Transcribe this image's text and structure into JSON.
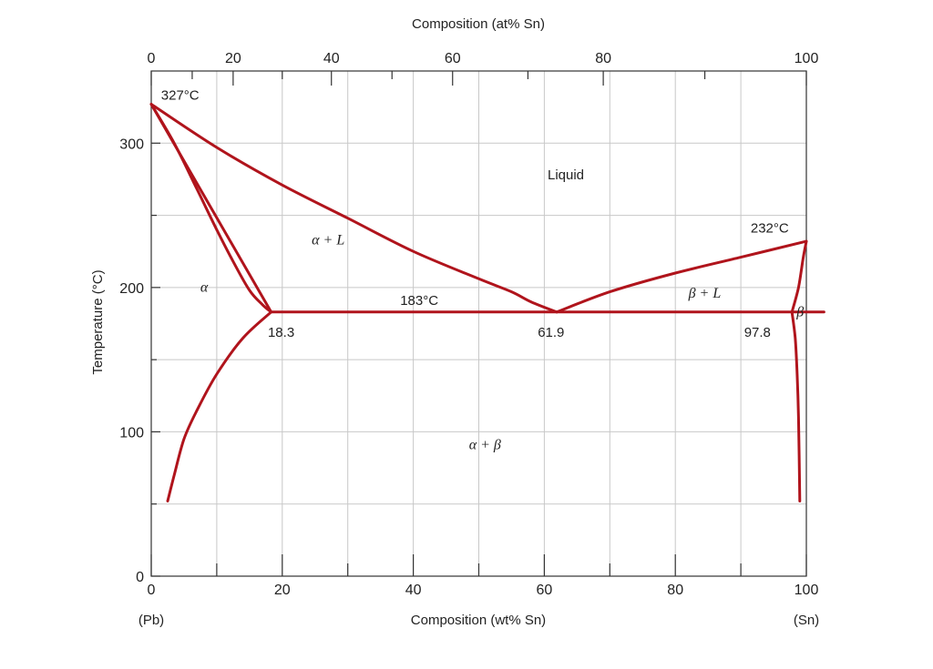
{
  "chart_data": {
    "type": "line",
    "title": "",
    "xlabel": "Composition (wt% Sn)",
    "x2label": "Composition (at% Sn)",
    "ylabel": "Temperature (°C)",
    "xlim": [
      0,
      100
    ],
    "ylim": [
      0,
      350
    ],
    "grid": true,
    "x_ticks": [
      "0",
      "20",
      "40",
      "60",
      "80",
      "100"
    ],
    "x_tick_values": [
      0,
      20,
      40,
      60,
      80,
      100
    ],
    "x_minor_ticks": [
      10,
      30,
      50,
      70,
      90
    ],
    "x2_ticks": [
      "0",
      "20",
      "40",
      "60",
      "80",
      "100"
    ],
    "x2_tick_wt_values": [
      0,
      12.5,
      27.5,
      46,
      69,
      100
    ],
    "y_ticks": [
      "0",
      "100",
      "200",
      "300"
    ],
    "y_tick_values": [
      0,
      100,
      200,
      300
    ],
    "y_minor_ticks": [
      50,
      150,
      250
    ],
    "x_end_labels": {
      "left": "(Pb)",
      "right": "(Sn)"
    },
    "line_color": "#b0141c",
    "grid_color": "#c8c8c8",
    "series": [
      {
        "x": [
          0,
          18.3
        ],
        "y": [
          327,
          183
        ]
      },
      {
        "x": [
          0,
          3.5,
          7,
          10,
          12.5,
          15,
          17,
          18.3
        ],
        "y": [
          327,
          300,
          268,
          240,
          218,
          198,
          188,
          183
        ]
      },
      {
        "x": [
          0,
          10,
          20,
          30,
          40,
          50,
          55,
          58,
          61.9
        ],
        "y": [
          327,
          297,
          271,
          248,
          225,
          206,
          197,
          190,
          183
        ]
      },
      {
        "x": [
          61.9,
          70,
          80,
          90,
          100
        ],
        "y": [
          183,
          197,
          210,
          221,
          232
        ]
      },
      {
        "x": [
          97.8,
          98.8,
          99.5,
          100
        ],
        "y": [
          183,
          200,
          220,
          232
        ]
      },
      {
        "x": [
          18.3,
          96.5,
          97.8
        ],
        "y": [
          183,
          183,
          183
        ]
      },
      {
        "x": [
          18.3,
          14,
          10,
          7,
          5,
          3.5,
          2.5
        ],
        "y": [
          183,
          165,
          140,
          115,
          95,
          70,
          52
        ]
      },
      {
        "x": [
          97.8,
          98.3,
          98.6,
          98.8,
          99
        ],
        "y": [
          183,
          165,
          140,
          110,
          52
        ]
      }
    ],
    "annotations": [
      {
        "text": "327°C",
        "x": 1.5,
        "y": 330,
        "style": "normal"
      },
      {
        "text": "Liquid",
        "x": 60.5,
        "y": 275,
        "style": "normal"
      },
      {
        "text": "232°C",
        "x": 91.5,
        "y": 238,
        "style": "normal"
      },
      {
        "text": "α + L",
        "x": 24.5,
        "y": 230,
        "style": "italic"
      },
      {
        "text": "α",
        "x": 7.5,
        "y": 197,
        "style": "italic"
      },
      {
        "text": "183°C",
        "x": 38,
        "y": 188,
        "style": "normal"
      },
      {
        "text": "β + L",
        "x": 82,
        "y": 193,
        "style": "italic"
      },
      {
        "text": "β",
        "x": 98.5,
        "y": 180,
        "style": "italic"
      },
      {
        "text": "18.3",
        "x": 17.8,
        "y": 166,
        "style": "normal"
      },
      {
        "text": "61.9",
        "x": 59,
        "y": 166,
        "style": "normal"
      },
      {
        "text": "97.8",
        "x": 90.5,
        "y": 166,
        "style": "normal"
      },
      {
        "text": "α + β",
        "x": 48.5,
        "y": 88,
        "style": "italic"
      }
    ]
  }
}
